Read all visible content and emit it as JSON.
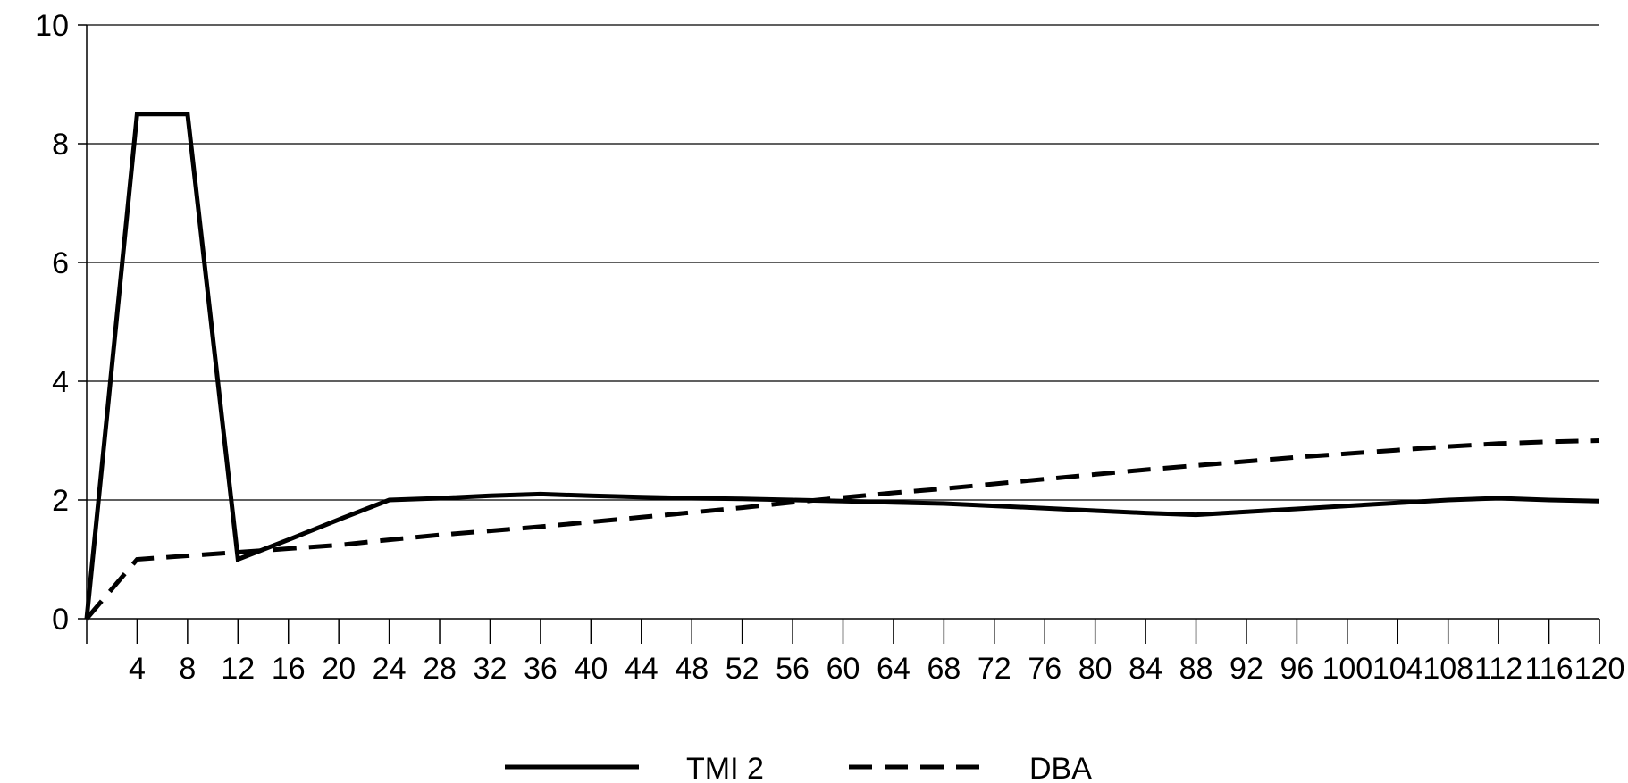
{
  "chart_data": {
    "type": "line",
    "title": "",
    "xlabel": "",
    "ylabel": "",
    "x": [
      0,
      4,
      8,
      12,
      16,
      20,
      24,
      28,
      32,
      36,
      40,
      44,
      48,
      52,
      56,
      60,
      64,
      68,
      72,
      76,
      80,
      84,
      88,
      92,
      96,
      100,
      104,
      108,
      112,
      116,
      120
    ],
    "x_tick_labels": [
      "4",
      "8",
      "12",
      "16",
      "20",
      "24",
      "28",
      "32",
      "36",
      "40",
      "44",
      "48",
      "52",
      "56",
      "60",
      "64",
      "68",
      "72",
      "76",
      "80",
      "84",
      "88",
      "92",
      "96",
      "100",
      "104",
      "108",
      "112",
      "116",
      "120"
    ],
    "xlim": [
      0,
      120
    ],
    "ylim": [
      0,
      10
    ],
    "y_ticks": [
      0,
      2,
      4,
      6,
      8,
      10
    ],
    "grid": "horizontal",
    "legend_position": "bottom",
    "series": [
      {
        "name": "TMI 2",
        "style": "solid",
        "color": "#000000",
        "values": [
          0,
          8.5,
          8.5,
          1.0,
          1.33,
          1.67,
          2.0,
          2.03,
          2.07,
          2.1,
          2.07,
          2.05,
          2.03,
          2.02,
          2.0,
          1.98,
          1.96,
          1.94,
          1.9,
          1.86,
          1.82,
          1.78,
          1.75,
          1.8,
          1.85,
          1.9,
          1.95,
          2.0,
          2.03,
          2.0,
          1.98
        ]
      },
      {
        "name": "DBA",
        "style": "dashed",
        "color": "#000000",
        "values": [
          0,
          1.0,
          1.06,
          1.12,
          1.18,
          1.24,
          1.33,
          1.41,
          1.48,
          1.55,
          1.63,
          1.71,
          1.79,
          1.87,
          1.96,
          2.04,
          2.12,
          2.19,
          2.27,
          2.35,
          2.43,
          2.51,
          2.58,
          2.65,
          2.72,
          2.78,
          2.84,
          2.9,
          2.95,
          2.98,
          3.0
        ]
      }
    ]
  }
}
